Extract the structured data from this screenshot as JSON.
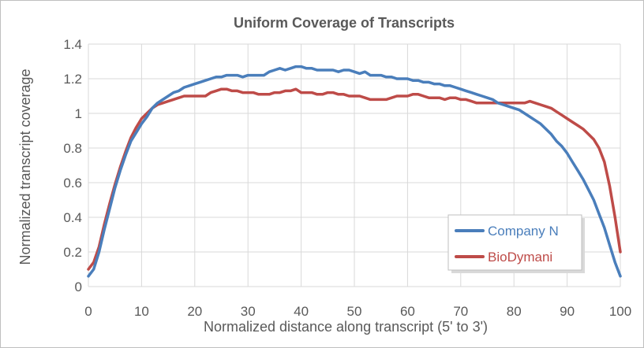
{
  "chart_data": {
    "type": "line",
    "title": "Uniform Coverage of Transcripts",
    "xlabel": "Normalized distance along transcript (5' to 3')",
    "ylabel": "Normalized transcript coverage",
    "xlim": [
      0,
      100
    ],
    "ylim": [
      0,
      1.4
    ],
    "x_ticks": [
      "0",
      "10",
      "20",
      "30",
      "40",
      "50",
      "60",
      "70",
      "80",
      "90",
      "100"
    ],
    "y_ticks": [
      "0",
      "0.2",
      "0.4",
      "0.6",
      "0.8",
      "1",
      "1.2",
      "1.4"
    ],
    "grid": true,
    "legend_position": "bottom-right",
    "x": [
      0,
      1,
      2,
      3,
      4,
      5,
      6,
      7,
      8,
      9,
      10,
      11,
      12,
      13,
      14,
      15,
      16,
      17,
      18,
      19,
      20,
      21,
      22,
      23,
      24,
      25,
      26,
      27,
      28,
      29,
      30,
      31,
      32,
      33,
      34,
      35,
      36,
      37,
      38,
      39,
      40,
      41,
      42,
      43,
      44,
      45,
      46,
      47,
      48,
      49,
      50,
      51,
      52,
      53,
      54,
      55,
      56,
      57,
      58,
      59,
      60,
      61,
      62,
      63,
      64,
      65,
      66,
      67,
      68,
      69,
      70,
      71,
      72,
      73,
      74,
      75,
      76,
      77,
      78,
      79,
      80,
      81,
      82,
      83,
      84,
      85,
      86,
      87,
      88,
      89,
      90,
      91,
      92,
      93,
      94,
      95,
      96,
      97,
      98,
      99,
      100
    ],
    "series": [
      {
        "name": "Company N",
        "color": "#4a7ebb",
        "values": [
          0.06,
          0.1,
          0.2,
          0.33,
          0.45,
          0.57,
          0.67,
          0.76,
          0.84,
          0.89,
          0.94,
          0.98,
          1.03,
          1.06,
          1.08,
          1.1,
          1.12,
          1.13,
          1.15,
          1.16,
          1.17,
          1.18,
          1.19,
          1.2,
          1.21,
          1.21,
          1.22,
          1.22,
          1.22,
          1.21,
          1.22,
          1.22,
          1.22,
          1.22,
          1.24,
          1.25,
          1.26,
          1.25,
          1.26,
          1.27,
          1.27,
          1.26,
          1.26,
          1.25,
          1.25,
          1.25,
          1.25,
          1.24,
          1.25,
          1.25,
          1.24,
          1.23,
          1.24,
          1.22,
          1.22,
          1.22,
          1.21,
          1.21,
          1.2,
          1.2,
          1.2,
          1.19,
          1.19,
          1.18,
          1.18,
          1.17,
          1.17,
          1.16,
          1.16,
          1.15,
          1.14,
          1.13,
          1.12,
          1.11,
          1.1,
          1.09,
          1.08,
          1.06,
          1.05,
          1.04,
          1.03,
          1.02,
          1.0,
          0.98,
          0.96,
          0.94,
          0.91,
          0.88,
          0.84,
          0.81,
          0.77,
          0.72,
          0.67,
          0.62,
          0.56,
          0.5,
          0.42,
          0.34,
          0.24,
          0.14,
          0.06
        ]
      },
      {
        "name": "BioDymani",
        "color": "#be4b48",
        "values": [
          0.1,
          0.14,
          0.23,
          0.36,
          0.48,
          0.59,
          0.69,
          0.78,
          0.86,
          0.92,
          0.97,
          1.0,
          1.03,
          1.05,
          1.06,
          1.07,
          1.08,
          1.09,
          1.1,
          1.1,
          1.1,
          1.1,
          1.1,
          1.12,
          1.13,
          1.14,
          1.14,
          1.13,
          1.13,
          1.12,
          1.12,
          1.12,
          1.11,
          1.11,
          1.11,
          1.12,
          1.12,
          1.13,
          1.13,
          1.14,
          1.12,
          1.12,
          1.12,
          1.11,
          1.11,
          1.12,
          1.12,
          1.11,
          1.11,
          1.1,
          1.1,
          1.1,
          1.09,
          1.08,
          1.08,
          1.08,
          1.08,
          1.09,
          1.1,
          1.1,
          1.1,
          1.11,
          1.11,
          1.1,
          1.09,
          1.09,
          1.09,
          1.08,
          1.09,
          1.09,
          1.08,
          1.08,
          1.07,
          1.06,
          1.06,
          1.06,
          1.06,
          1.06,
          1.06,
          1.06,
          1.06,
          1.06,
          1.06,
          1.07,
          1.06,
          1.05,
          1.04,
          1.03,
          1.01,
          0.99,
          0.97,
          0.95,
          0.93,
          0.91,
          0.88,
          0.85,
          0.8,
          0.72,
          0.58,
          0.4,
          0.2
        ]
      }
    ]
  }
}
